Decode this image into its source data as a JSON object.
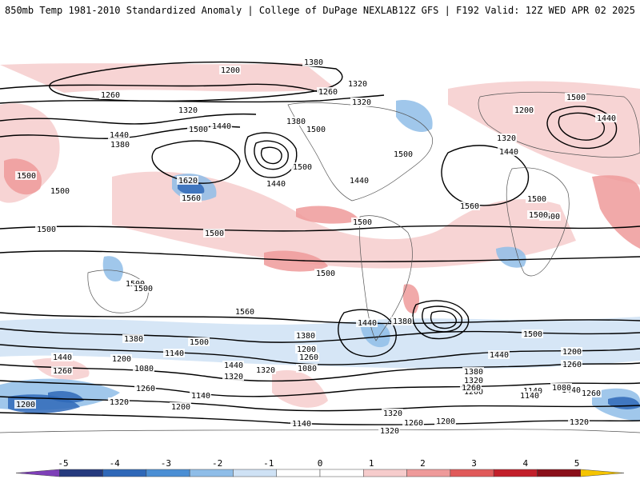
{
  "header": {
    "left": "850mb Temp 1981-2010 Standardized Anomaly | College of DuPage NEXLAB",
    "right": "12Z GFS | F192 Valid: 12Z WED APR 02 2025"
  },
  "colorbar": {
    "ticks": [
      "-5",
      "-4",
      "-3",
      "-2",
      "-1",
      "0",
      "1",
      "2",
      "3",
      "4",
      "5"
    ],
    "colors": [
      "#7e3fb8",
      "#253a7e",
      "#2f68b8",
      "#4b8fd4",
      "#8fbde8",
      "#cfe2f5",
      "#ffffff",
      "#ffffff",
      "#f6cccc",
      "#ee9a9a",
      "#e05a5a",
      "#c21f2a",
      "#8a0f1a",
      "#f5c400"
    ]
  },
  "map": {
    "anomaly_colors": {
      "cold_strong": "#2f68b8",
      "cold": "#8fbde8",
      "cold_weak": "#cfe2f5",
      "warm_weak": "#f6cccc",
      "warm": "#ee9a9a",
      "warm_strong": "#c21f2a"
    },
    "contour_labels": [
      "1200",
      "1260",
      "1260",
      "1320",
      "1320",
      "1380",
      "1320",
      "1380",
      "1500",
      "1440",
      "1440",
      "1380",
      "1500",
      "1440",
      "1500",
      "1440",
      "1500",
      "1620",
      "1560",
      "1440",
      "1500",
      "1500",
      "1500",
      "1560",
      "1200",
      "1320",
      "1440",
      "1500",
      "1500",
      "1500",
      "1500",
      "1500",
      "1500",
      "1500",
      "1380",
      "1500",
      "1500",
      "1560",
      "1440",
      "1500",
      "1500",
      "1440",
      "1380",
      "1440",
      "1260",
      "1200",
      "1080",
      "1140",
      "1320",
      "1440",
      "1200",
      "1260",
      "1080",
      "1380",
      "1320",
      "1200",
      "1140",
      "1260",
      "1200",
      "1260",
      "1440",
      "1320",
      "1200",
      "1380",
      "1320",
      "1200",
      "1080",
      "1140",
      "1260",
      "1320",
      "1200",
      "1140",
      "1260",
      "1320",
      "1140",
      "1260",
      "1320"
    ]
  }
}
